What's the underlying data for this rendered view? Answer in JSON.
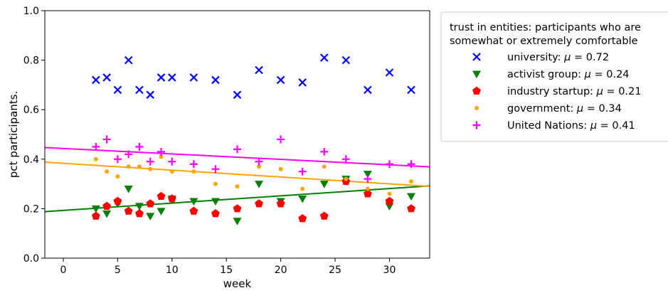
{
  "chart_data": {
    "type": "scatter",
    "xlabel": "week",
    "ylabel": "pct participants.",
    "xlim": [
      -1.7,
      33.7
    ],
    "ylim": [
      0.0,
      1.0
    ],
    "xticks": [
      0,
      5,
      10,
      15,
      20,
      25,
      30
    ],
    "yticks": [
      0.0,
      0.2,
      0.4,
      0.6,
      0.8,
      1.0
    ],
    "xtick_labels": [
      "0",
      "5",
      "10",
      "15",
      "20",
      "25",
      "30"
    ],
    "ytick_labels": [
      "0.0",
      "0.2",
      "0.4",
      "0.6",
      "0.8",
      "1.0"
    ],
    "grid": false,
    "legend": {
      "placement": "outside-top-right",
      "title_lines": [
        "trust in entities: participants who are",
        "somewhat or extremely comfortable"
      ]
    },
    "series": [
      {
        "name": "university: μ = 0.72",
        "label_prefix": "university: ",
        "label_suffix": " = 0.72",
        "marker": "x",
        "color": "#0000ff",
        "x": [
          3,
          4,
          5,
          6,
          7,
          8,
          9,
          10,
          12,
          14,
          16,
          18,
          20,
          22,
          24,
          26,
          28,
          30,
          32
        ],
        "values": [
          0.72,
          0.73,
          0.68,
          0.8,
          0.68,
          0.66,
          0.73,
          0.73,
          0.73,
          0.72,
          0.66,
          0.76,
          0.72,
          0.71,
          0.81,
          0.8,
          0.68,
          0.75,
          0.68
        ]
      },
      {
        "name": "activist group: μ = 0.24",
        "label_prefix": "activist group: ",
        "label_suffix": " = 0.24",
        "marker": "triangle-down",
        "color": "#008000",
        "x": [
          3,
          4,
          5,
          6,
          7,
          8,
          9,
          10,
          12,
          14,
          16,
          18,
          20,
          22,
          24,
          26,
          28,
          30,
          32
        ],
        "values": [
          0.2,
          0.18,
          0.22,
          0.28,
          0.21,
          0.17,
          0.19,
          0.24,
          0.23,
          0.23,
          0.15,
          0.3,
          0.23,
          0.24,
          0.3,
          0.32,
          0.34,
          0.21,
          0.25
        ]
      },
      {
        "name": "industry startup: μ = 0.21",
        "label_prefix": "industry startup: ",
        "label_suffix": " = 0.21",
        "marker": "pentagon",
        "color": "#ff0000",
        "x": [
          3,
          4,
          5,
          6,
          7,
          8,
          9,
          10,
          12,
          14,
          16,
          18,
          20,
          22,
          24,
          26,
          28,
          30,
          32
        ],
        "values": [
          0.17,
          0.21,
          0.23,
          0.19,
          0.18,
          0.22,
          0.25,
          0.24,
          0.19,
          0.18,
          0.2,
          0.22,
          0.22,
          0.16,
          0.17,
          0.31,
          0.26,
          0.23,
          0.2
        ]
      },
      {
        "name": "government: μ = 0.34",
        "label_prefix": "government: ",
        "label_suffix": " = 0.34",
        "marker": "dot",
        "color": "#ffa500",
        "x": [
          3,
          4,
          5,
          6,
          7,
          8,
          9,
          10,
          12,
          14,
          16,
          18,
          20,
          22,
          24,
          26,
          28,
          30,
          32
        ],
        "values": [
          0.4,
          0.35,
          0.33,
          0.37,
          0.37,
          0.36,
          0.41,
          0.35,
          0.35,
          0.3,
          0.29,
          0.37,
          0.36,
          0.28,
          0.37,
          0.32,
          0.28,
          0.26,
          0.31
        ]
      },
      {
        "name": "United Nations: μ = 0.41",
        "label_prefix": "United Nations: ",
        "label_suffix": " = 0.41",
        "marker": "plus",
        "color": "#ff00ff",
        "x": [
          3,
          4,
          5,
          6,
          7,
          8,
          9,
          10,
          12,
          14,
          16,
          18,
          20,
          22,
          24,
          26,
          28,
          30,
          32
        ],
        "values": [
          0.45,
          0.48,
          0.4,
          0.42,
          0.45,
          0.39,
          0.43,
          0.39,
          0.38,
          0.36,
          0.44,
          0.39,
          0.48,
          0.35,
          0.43,
          0.4,
          0.32,
          0.38,
          0.38
        ]
      }
    ],
    "trend_lines": [
      {
        "series_index": 1,
        "color": "#008000",
        "x": [
          -1.7,
          33.7
        ],
        "y": [
          0.188,
          0.292
        ]
      },
      {
        "series_index": 3,
        "color": "#ffa500",
        "x": [
          -1.7,
          33.7
        ],
        "y": [
          0.388,
          0.29
        ]
      },
      {
        "series_index": 4,
        "color": "#ff00ff",
        "x": [
          -1.7,
          33.7
        ],
        "y": [
          0.447,
          0.369
        ]
      }
    ]
  }
}
